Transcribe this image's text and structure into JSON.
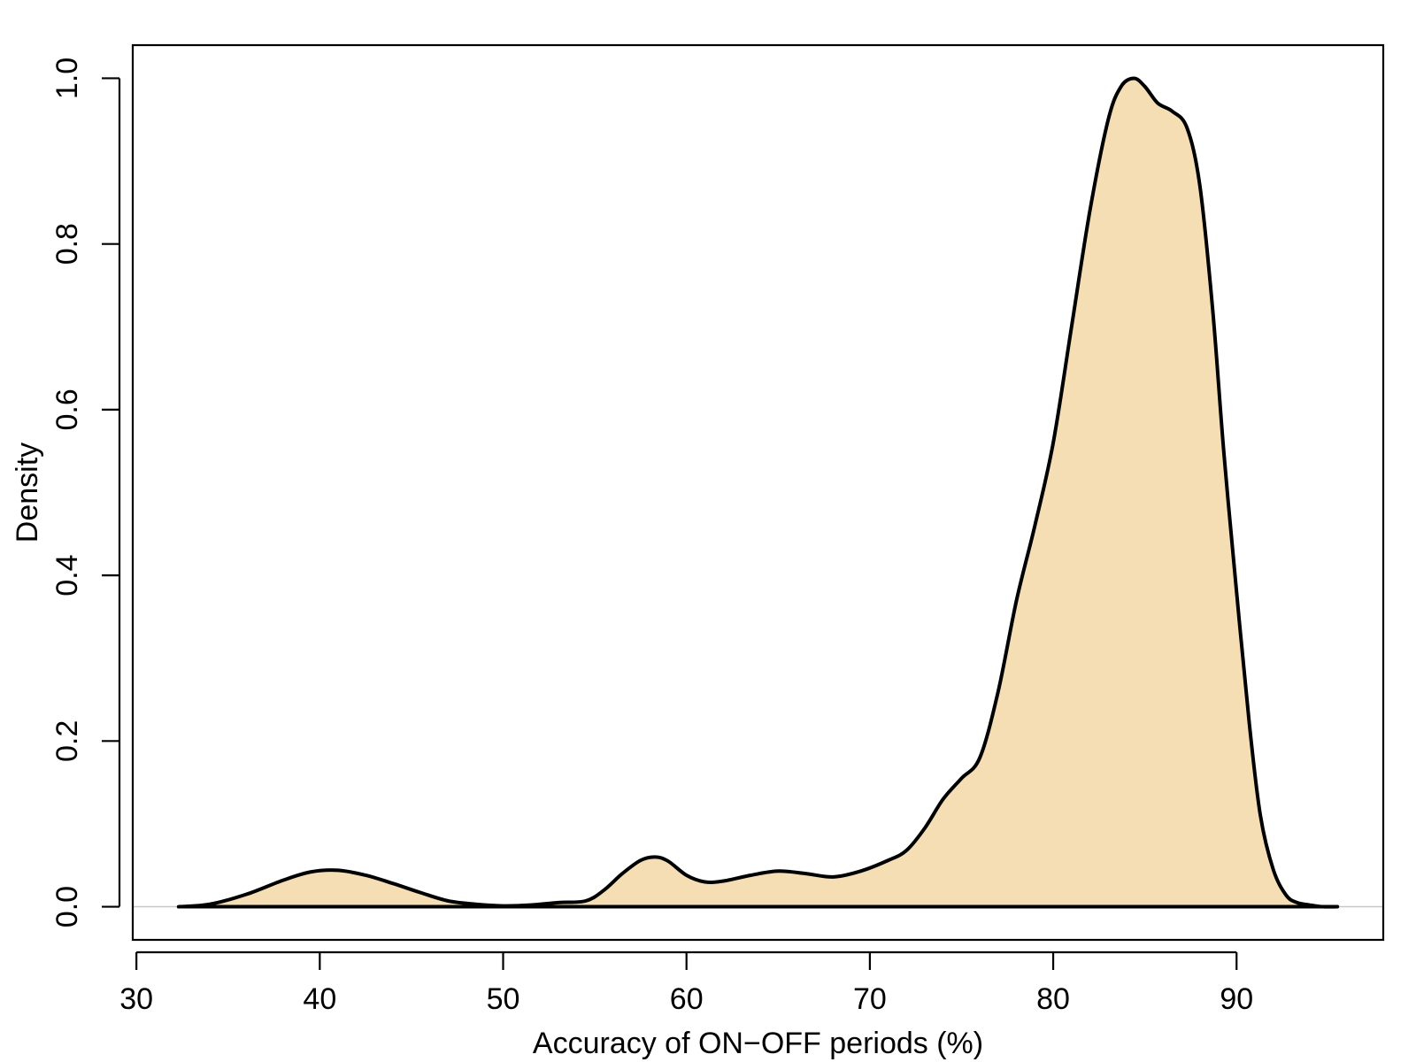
{
  "chart_data": {
    "type": "area",
    "title": "",
    "xlabel": "Accuracy of ON−OFF periods (%)",
    "ylabel": "Density",
    "xlim": [
      29.8,
      98.0
    ],
    "ylim": [
      -0.04,
      1.04
    ],
    "x_ticks": [
      30,
      40,
      50,
      60,
      70,
      80,
      90
    ],
    "y_ticks": [
      0.0,
      0.2,
      0.4,
      0.6,
      0.8,
      1.0
    ],
    "x_tick_labels": [
      "30",
      "40",
      "50",
      "60",
      "70",
      "80",
      "90"
    ],
    "y_tick_labels": [
      "0.0",
      "0.2",
      "0.4",
      "0.6",
      "0.8",
      "1.0"
    ],
    "grid": false,
    "baseline": 0.0,
    "fill_color": "#f5deb3",
    "line_color": "#000000",
    "baseline_color": "#c8c8c8",
    "series": [
      {
        "x": [
          32.3,
          34.0,
          36.0,
          38.0,
          39.5,
          41.0,
          42.5,
          44.0,
          45.5,
          47.0,
          48.5,
          50.0,
          51.5,
          53.0,
          54.5,
          55.5,
          56.5,
          57.5,
          58.3,
          59.0,
          60.0,
          61.0,
          62.0,
          63.5,
          65.0,
          66.5,
          68.0,
          69.5,
          71.0,
          72.0,
          73.0,
          74.0,
          75.0,
          76.0,
          77.0,
          78.0,
          79.0,
          80.0,
          81.0,
          82.0,
          83.0,
          83.7,
          84.4,
          85.0,
          85.7,
          86.5,
          87.3,
          88.0,
          88.7,
          89.3,
          90.0,
          90.7,
          91.3,
          92.0,
          92.7,
          93.3,
          94.0,
          94.7,
          95.5
        ],
        "y": [
          0.0,
          0.003,
          0.015,
          0.032,
          0.042,
          0.044,
          0.038,
          0.028,
          0.017,
          0.007,
          0.003,
          0.001,
          0.002,
          0.005,
          0.007,
          0.02,
          0.04,
          0.056,
          0.06,
          0.055,
          0.038,
          0.03,
          0.031,
          0.038,
          0.043,
          0.04,
          0.036,
          0.043,
          0.056,
          0.068,
          0.095,
          0.13,
          0.155,
          0.18,
          0.26,
          0.37,
          0.46,
          0.56,
          0.7,
          0.84,
          0.95,
          0.99,
          1.0,
          0.99,
          0.97,
          0.96,
          0.94,
          0.87,
          0.72,
          0.55,
          0.38,
          0.22,
          0.11,
          0.045,
          0.014,
          0.005,
          0.002,
          0.0,
          0.0
        ]
      }
    ]
  }
}
